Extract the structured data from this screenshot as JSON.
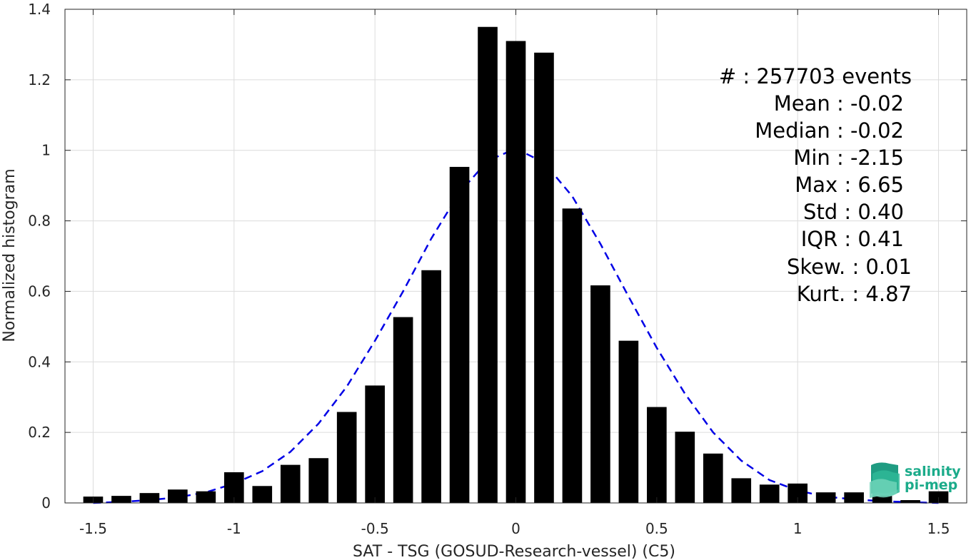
{
  "chart_data": {
    "type": "bar",
    "xlabel": "SAT - TSG (GOSUD-Research-vessel) (C5)",
    "ylabel": "Normalized histogram",
    "xlim": [
      -1.6,
      1.6
    ],
    "ylim": [
      0,
      1.4
    ],
    "grid": true,
    "x_ticks": [
      -1.5,
      -1,
      -0.5,
      0,
      0.5,
      1,
      1.5
    ],
    "x_tick_labels": [
      "-1.5",
      "-1",
      "-0.5",
      "0",
      "0.5",
      "1",
      "1.5"
    ],
    "y_ticks": [
      0,
      0.2,
      0.4,
      0.6,
      0.8,
      1,
      1.2,
      1.4
    ],
    "y_tick_labels": [
      "0",
      "0.2",
      "0.4",
      "0.6",
      "0.8",
      "1",
      "1.2",
      "1.4"
    ],
    "bar_color": "#000000",
    "bar_width": 0.07,
    "bars": {
      "x": [
        -1.5,
        -1.4,
        -1.3,
        -1.2,
        -1.1,
        -1.0,
        -0.9,
        -0.8,
        -0.7,
        -0.6,
        -0.5,
        -0.4,
        -0.3,
        -0.2,
        -0.1,
        0.0,
        0.1,
        0.2,
        0.3,
        0.4,
        0.5,
        0.6,
        0.7,
        0.8,
        0.9,
        1.0,
        1.1,
        1.2,
        1.3,
        1.4,
        1.5
      ],
      "values": [
        0.018,
        0.02,
        0.028,
        0.038,
        0.033,
        0.087,
        0.048,
        0.108,
        0.127,
        0.258,
        0.333,
        0.527,
        0.66,
        0.953,
        1.35,
        1.31,
        1.277,
        0.835,
        0.617,
        0.46,
        0.272,
        0.202,
        0.14,
        0.07,
        0.052,
        0.055,
        0.03,
        0.03,
        0.02,
        0.008,
        0.033
      ]
    },
    "fit_curve": {
      "style": "dashed",
      "color": "#0000e6",
      "x": [
        -1.5,
        -1.4,
        -1.3,
        -1.2,
        -1.1,
        -1.0,
        -0.9,
        -0.8,
        -0.7,
        -0.6,
        -0.5,
        -0.4,
        -0.3,
        -0.2,
        -0.1,
        0.0,
        0.1,
        0.2,
        0.3,
        0.4,
        0.5,
        0.6,
        0.7,
        0.8,
        0.9,
        1.0,
        1.1,
        1.2,
        1.3,
        1.4,
        1.5
      ],
      "y": [
        0.0,
        0.003,
        0.008,
        0.016,
        0.03,
        0.055,
        0.09,
        0.145,
        0.225,
        0.33,
        0.46,
        0.6,
        0.75,
        0.88,
        0.97,
        1.005,
        0.965,
        0.87,
        0.735,
        0.585,
        0.44,
        0.31,
        0.2,
        0.12,
        0.065,
        0.035,
        0.018,
        0.01,
        0.005,
        0.002,
        0.0
      ]
    }
  },
  "stats": {
    "events": "#  : 257703 events",
    "mean": "Mean : -0.02",
    "median": "Median : -0.02",
    "min": "Min : -2.15",
    "max": "Max : 6.65",
    "std": "Std : 0.40",
    "iqr": "IQR : 0.41",
    "skew": "Skew. : 0.01",
    "kurt": "Kurt. : 4.87"
  },
  "logo": {
    "name": "salinity-pimep-logo",
    "line1": "salinity",
    "line2": "pi-mep",
    "color": "#1bab8a"
  }
}
